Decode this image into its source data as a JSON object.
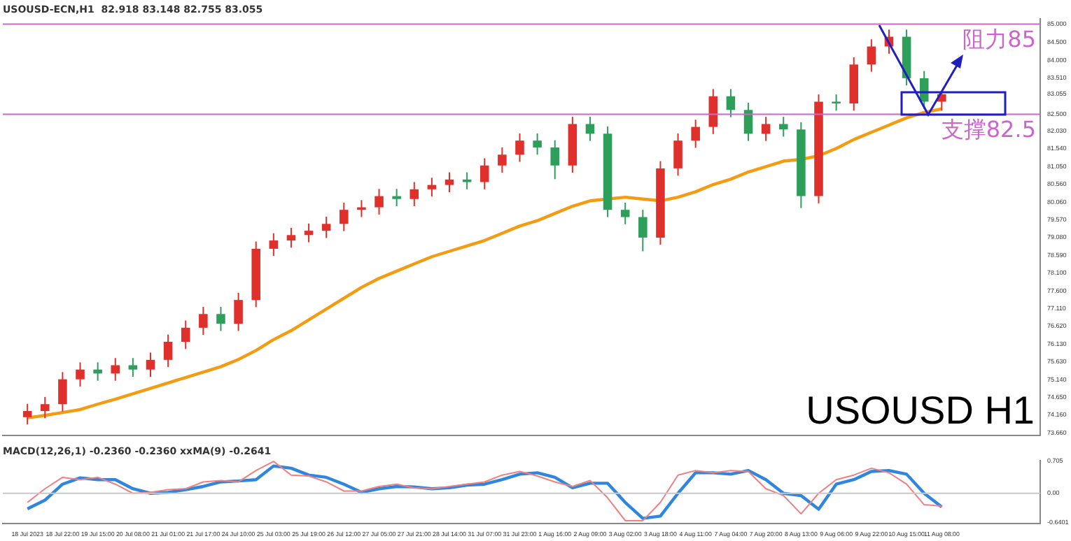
{
  "chart_data": [
    {
      "type": "candlestick",
      "title": "USOUSD-ECN,H1  82.918 83.148 82.755 83.055",
      "categories": [
        null,
        null,
        null,
        null,
        null,
        null,
        null,
        null,
        null,
        null,
        null,
        null,
        null,
        null,
        null,
        null,
        null,
        null,
        null,
        null,
        null,
        null,
        null,
        null,
        null,
        null,
        null,
        null,
        null,
        null,
        null,
        null,
        null,
        null,
        null,
        null,
        null,
        null,
        null,
        null,
        null,
        null,
        null,
        null,
        null,
        null,
        null,
        null,
        null,
        null,
        null,
        null,
        null
      ],
      "ohlc": [
        [
          74.1,
          74.47,
          73.9,
          74.27
        ],
        [
          74.27,
          74.66,
          74.07,
          74.46
        ],
        [
          74.46,
          75.35,
          74.26,
          75.15
        ],
        [
          75.15,
          75.62,
          74.95,
          75.42
        ],
        [
          75.42,
          75.62,
          75.11,
          75.31
        ],
        [
          75.31,
          75.74,
          75.11,
          75.54
        ],
        [
          75.54,
          75.74,
          75.22,
          75.42
        ],
        [
          75.42,
          75.89,
          75.22,
          75.69
        ],
        [
          75.69,
          76.39,
          75.49,
          76.19
        ],
        [
          76.19,
          76.78,
          75.99,
          76.58
        ],
        [
          76.58,
          77.16,
          76.38,
          76.96
        ],
        [
          76.96,
          77.16,
          76.49,
          76.69
        ],
        [
          76.69,
          77.55,
          76.49,
          77.35
        ],
        [
          77.35,
          78.97,
          77.15,
          78.77
        ],
        [
          78.77,
          79.2,
          78.57,
          79.0
        ],
        [
          79.0,
          79.35,
          78.8,
          79.15
        ],
        [
          79.15,
          79.47,
          78.95,
          79.27
        ],
        [
          79.27,
          79.66,
          79.07,
          79.46
        ],
        [
          79.46,
          80.05,
          79.26,
          79.85
        ],
        [
          79.85,
          80.12,
          79.65,
          79.92
        ],
        [
          79.92,
          80.43,
          79.72,
          80.23
        ],
        [
          80.23,
          80.43,
          79.95,
          80.15
        ],
        [
          80.15,
          80.62,
          79.95,
          80.42
        ],
        [
          80.42,
          80.74,
          80.22,
          80.54
        ],
        [
          80.54,
          80.89,
          80.34,
          80.69
        ],
        [
          80.69,
          80.89,
          80.42,
          80.62
        ],
        [
          80.62,
          81.28,
          80.42,
          81.08
        ],
        [
          81.08,
          81.58,
          80.88,
          81.38
        ],
        [
          81.38,
          81.97,
          81.18,
          81.77
        ],
        [
          81.77,
          81.97,
          81.38,
          81.58
        ],
        [
          81.58,
          81.78,
          80.7,
          81.08
        ],
        [
          81.08,
          82.43,
          80.88,
          82.23
        ],
        [
          82.23,
          82.43,
          81.76,
          81.96
        ],
        [
          81.96,
          82.16,
          79.65,
          79.85
        ],
        [
          79.85,
          80.05,
          79.45,
          79.65
        ],
        [
          79.65,
          79.85,
          78.7,
          79.08
        ],
        [
          79.08,
          81.2,
          78.88,
          81.0
        ],
        [
          81.0,
          81.97,
          80.8,
          81.77
        ],
        [
          81.77,
          82.35,
          81.57,
          82.15
        ],
        [
          82.15,
          83.2,
          81.95,
          83.0
        ],
        [
          83.0,
          83.2,
          82.42,
          82.62
        ],
        [
          82.62,
          82.82,
          81.76,
          81.96
        ],
        [
          81.96,
          82.43,
          81.76,
          82.23
        ],
        [
          82.23,
          82.43,
          81.88,
          82.08
        ],
        [
          82.08,
          82.28,
          79.9,
          80.23
        ],
        [
          80.23,
          83.05,
          80.03,
          82.85
        ],
        [
          82.85,
          83.05,
          82.6,
          82.8
        ],
        [
          82.8,
          84.08,
          82.6,
          83.88
        ],
        [
          83.88,
          84.58,
          83.68,
          84.38
        ],
        [
          84.38,
          84.85,
          84.18,
          84.65
        ],
        [
          84.65,
          84.85,
          83.3,
          83.5
        ],
        [
          83.5,
          83.7,
          82.65,
          82.85
        ],
        [
          82.85,
          83.15,
          82.6,
          83.055
        ]
      ],
      "colors": [
        "#e0302c",
        "#e0302c",
        "#e0302c",
        "#e0302c",
        "#2e9e5b",
        "#e0302c",
        "#2e9e5b",
        "#e0302c",
        "#e0302c",
        "#e0302c",
        "#e0302c",
        "#2e9e5b",
        "#e0302c",
        "#e0302c",
        "#e0302c",
        "#e0302c",
        "#e0302c",
        "#e0302c",
        "#e0302c",
        "#e0302c",
        "#e0302c",
        "#2e9e5b",
        "#e0302c",
        "#e0302c",
        "#e0302c",
        "#2e9e5b",
        "#e0302c",
        "#e0302c",
        "#e0302c",
        "#2e9e5b",
        "#2e9e5b",
        "#e0302c",
        "#2e9e5b",
        "#2e9e5b",
        "#2e9e5b",
        "#2e9e5b",
        "#e0302c",
        "#e0302c",
        "#e0302c",
        "#e0302c",
        "#2e9e5b",
        "#2e9e5b",
        "#e0302c",
        "#2e9e5b",
        "#2e9e5b",
        "#e0302c",
        "#2e9e5b",
        "#e0302c",
        "#e0302c",
        "#e0302c",
        "#2e9e5b",
        "#2e9e5b",
        "#e0302c"
      ],
      "series": [
        {
          "type": "line",
          "color": "#f39c12",
          "values": [
            74.08,
            74.15,
            74.23,
            74.31,
            74.46,
            74.6,
            74.75,
            74.9,
            75.05,
            75.2,
            75.35,
            75.5,
            75.7,
            75.95,
            76.25,
            76.5,
            76.8,
            77.1,
            77.4,
            77.7,
            77.95,
            78.15,
            78.35,
            78.55,
            78.7,
            78.85,
            79.0,
            79.2,
            79.4,
            79.55,
            79.75,
            79.95,
            80.1,
            80.15,
            80.2,
            80.15,
            80.1,
            80.2,
            80.35,
            80.55,
            80.7,
            80.9,
            81.05,
            81.2,
            81.25,
            81.35,
            81.55,
            81.8,
            82.0,
            82.2,
            82.4,
            82.55,
            82.65
          ]
        }
      ],
      "ylim": [
        73.6,
        85.15
      ],
      "yticks": [
        {
          "value": 85,
          "label": "85.000"
        },
        {
          "value": 84.5,
          "label": "84.500"
        },
        {
          "value": 84,
          "label": "84.000"
        },
        {
          "value": 83.51,
          "label": "83.510"
        },
        {
          "value": 83.055,
          "label": "83.055"
        },
        {
          "value": 82.5,
          "label": "82.500"
        },
        {
          "value": 82.03,
          "label": "82.030"
        },
        {
          "value": 81.54,
          "label": "81.540"
        },
        {
          "value": 81.05,
          "label": "81.050"
        },
        {
          "value": 80.56,
          "label": "80.560"
        },
        {
          "value": 80.06,
          "label": "80.060"
        },
        {
          "value": 79.57,
          "label": "79.570"
        },
        {
          "value": 79.08,
          "label": "79.080"
        },
        {
          "value": 78.59,
          "label": "78.590"
        },
        {
          "value": 78.1,
          "label": "78.100"
        },
        {
          "value": 77.6,
          "label": "77.600"
        },
        {
          "value": 77.11,
          "label": "77.110"
        },
        {
          "value": 76.62,
          "label": "76.620"
        },
        {
          "value": 76.13,
          "label": "76.130"
        },
        {
          "value": 75.63,
          "label": "75.630"
        },
        {
          "value": 75.14,
          "label": "75.140"
        },
        {
          "value": 74.65,
          "label": "74.650"
        },
        {
          "value": 74.16,
          "label": "74.160"
        },
        {
          "value": 73.66,
          "label": "73.660"
        }
      ],
      "ref_lines": [
        {
          "axis": "y",
          "value": 85,
          "label": "阻力85",
          "color": "#cc66cc"
        },
        {
          "axis": "y",
          "value": 82.5,
          "label": "支撑82.5",
          "color": "#cc66cc"
        }
      ],
      "annotations": [
        "USOUSD H1"
      ],
      "tick_labels": "y",
      "grid": false,
      "legend": false
    },
    {
      "type": "line",
      "title": "MACD(12,26,1) -0.2360 -0.2360 xxMA(9) -0.2641",
      "categories": [
        "18 Jul 2023",
        null,
        "18 Jul 22:00",
        null,
        "19 Jul 15:00",
        null,
        "20 Jul 08:00",
        null,
        "21 Jul 01:00",
        null,
        "21 Jul 17:00",
        null,
        "24 Jul 10:00",
        null,
        "25 Jul 03:00",
        null,
        "25 Jul 19:00",
        null,
        "26 Jul 12:00",
        null,
        "27 Jul 05:00",
        null,
        "27 Jul 21:00",
        null,
        "28 Jul 14:00",
        null,
        "31 Jul 07:00",
        null,
        "31 Jul 23:00",
        null,
        "1 Aug 16:00",
        null,
        "2 Aug 09:00",
        null,
        "3 Aug 02:00",
        null,
        "3 Aug 18:00",
        null,
        "4 Aug 11:00",
        null,
        "7 Aug 04:00",
        null,
        "7 Aug 20:00",
        null,
        "8 Aug 13:00",
        null,
        "9 Aug 06:00",
        null,
        "9 Aug 22:00",
        null,
        "10 Aug 15:00",
        null,
        "11 Aug 08:00"
      ],
      "series": [
        {
          "color": "#f08080",
          "values": [
            -0.2,
            0.1,
            0.35,
            0.3,
            0.35,
            0.2,
            0.0,
            0.02,
            0.08,
            0.1,
            0.25,
            0.28,
            0.25,
            0.5,
            0.7,
            0.4,
            0.38,
            0.25,
            0.05,
            0.05,
            0.15,
            0.2,
            0.12,
            0.1,
            0.15,
            0.2,
            0.25,
            0.4,
            0.48,
            0.38,
            0.25,
            0.15,
            0.28,
            -0.1,
            -0.6,
            -0.6,
            -0.2,
            0.4,
            0.5,
            0.45,
            0.5,
            0.48,
            0.1,
            -0.05,
            -0.45,
            0.0,
            0.3,
            0.4,
            0.55,
            0.45,
            0.2,
            -0.25,
            -0.28
          ]
        },
        {
          "color": "#2e86de",
          "values": [
            -0.34,
            -0.15,
            0.2,
            0.34,
            0.3,
            0.3,
            0.1,
            0.0,
            0.02,
            0.08,
            0.15,
            0.25,
            0.27,
            0.3,
            0.6,
            0.55,
            0.4,
            0.35,
            0.2,
            0.02,
            0.1,
            0.15,
            0.14,
            0.1,
            0.12,
            0.18,
            0.2,
            0.3,
            0.42,
            0.45,
            0.35,
            0.12,
            0.22,
            0.22,
            -0.2,
            -0.55,
            -0.5,
            0.0,
            0.45,
            0.45,
            0.42,
            0.5,
            0.3,
            0.0,
            -0.05,
            -0.35,
            0.2,
            0.3,
            0.48,
            0.5,
            0.42,
            0.0,
            -0.3
          ]
        }
      ],
      "ylim": [
        -0.67,
        0.72
      ],
      "yticks": [
        {
          "value": 0.705,
          "label": "0.705"
        },
        {
          "value": 0,
          "label": "0.00"
        },
        {
          "value": -0.6401,
          "label": "-0.6401"
        }
      ],
      "ref_lines": [
        {
          "axis": "y",
          "value": 0,
          "label": null,
          "color": "#c8c8c8"
        }
      ],
      "grid": false,
      "legend": false
    }
  ]
}
